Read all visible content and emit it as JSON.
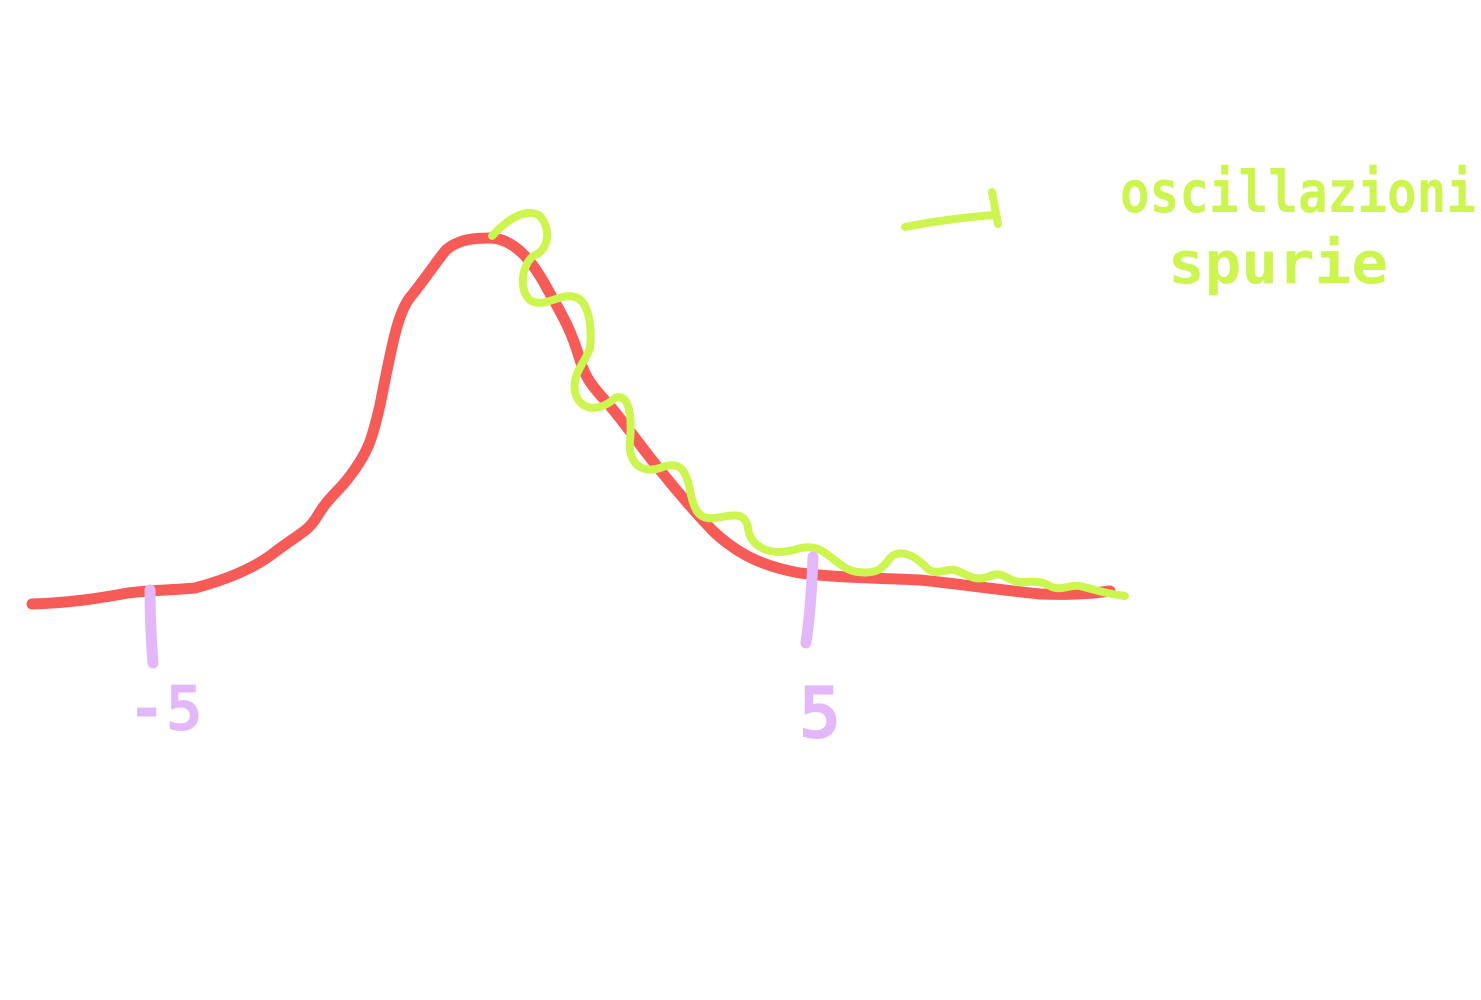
{
  "colors": {
    "curve": "#f65b58",
    "oscillation": "#ccf54f",
    "tick": "#e3b8fb",
    "background": "#ffffff"
  },
  "ticks": [
    {
      "label": "-5"
    },
    {
      "label": "5"
    }
  ],
  "annotation": {
    "line1": "oscillazioni",
    "line2": "spurie"
  }
}
